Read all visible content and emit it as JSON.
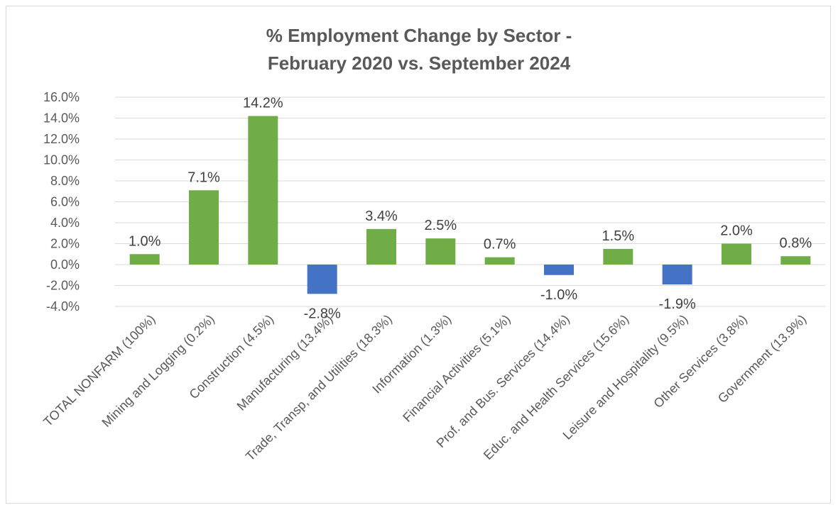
{
  "chart_data": {
    "type": "bar",
    "title": "% Employment Change by Sector -",
    "subtitle": "February 2020 vs. September 2024",
    "categories": [
      "TOTAL NONFARM (100%)",
      "Mining and Logging (0.2%)",
      "Construction (4.5%)",
      "Manufacturing (13.4%)",
      "Trade, Transp, and Utilities (18.3%)",
      "Information (1.3%)",
      "Financial Activities (5.1%)",
      "Prof. and Bus. Services (14.4%)",
      "Educ. and Health Services (15.6%)",
      "Leisure and Hospitality (9.5%)",
      "Other Services (3.8%)",
      "Government (13.9%)"
    ],
    "values": [
      1.0,
      7.1,
      14.2,
      -2.8,
      3.4,
      2.5,
      0.7,
      -1.0,
      1.5,
      -1.9,
      2.0,
      0.8
    ],
    "data_labels": [
      "1.0%",
      "7.1%",
      "14.2%",
      "-2.8%",
      "3.4%",
      "2.5%",
      "0.7%",
      "-1.0%",
      "1.5%",
      "-1.9%",
      "2.0%",
      "0.8%"
    ],
    "yticks": [
      16,
      14,
      12,
      10,
      8,
      6,
      4,
      2,
      0,
      -2,
      -4
    ],
    "ytick_labels": [
      "16.0%",
      "14.0%",
      "12.0%",
      "10.0%",
      "8.0%",
      "6.0%",
      "4.0%",
      "2.0%",
      "0.0%",
      "-2.0%",
      "-4.0%"
    ],
    "ylim": [
      -4,
      16
    ],
    "xlabel": "",
    "ylabel": "",
    "grid": true,
    "legend": "none",
    "colors": {
      "positive": "#70ad47",
      "negative": "#4472c4",
      "grid": "#d9d9d9",
      "text": "#595959"
    }
  }
}
